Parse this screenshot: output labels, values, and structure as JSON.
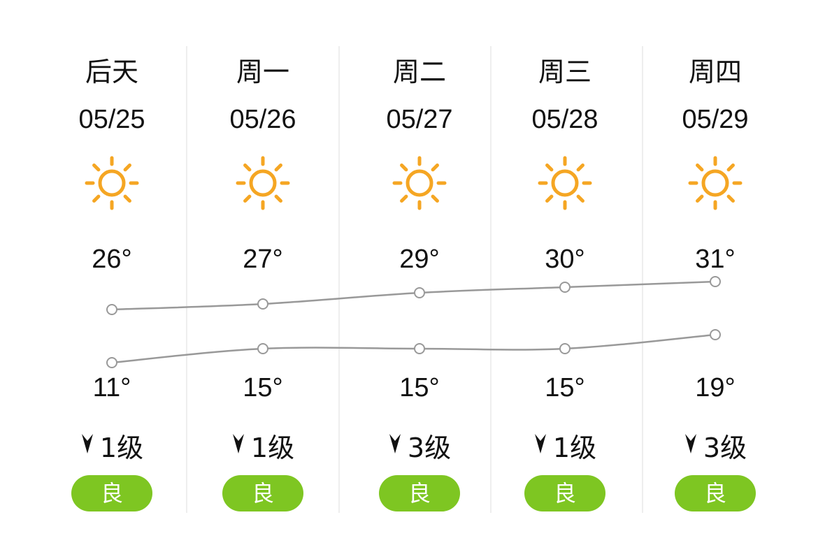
{
  "colors": {
    "sun": "#f5a623",
    "aqi_good": "#7ec622",
    "line": "#999999",
    "divider": "#eeeeee"
  },
  "days": [
    {
      "day": "后天",
      "date": "05/25",
      "icon": "sun-icon",
      "high": "26°",
      "low": "11°",
      "wind_icon": "wind-direction-icon",
      "wind": "1级",
      "aqi": "良"
    },
    {
      "day": "周一",
      "date": "05/26",
      "icon": "sun-icon",
      "high": "27°",
      "low": "15°",
      "wind_icon": "wind-direction-icon",
      "wind": "1级",
      "aqi": "良"
    },
    {
      "day": "周二",
      "date": "05/27",
      "icon": "sun-icon",
      "high": "29°",
      "low": "15°",
      "wind_icon": "wind-direction-icon",
      "wind": "3级",
      "aqi": "良"
    },
    {
      "day": "周三",
      "date": "05/28",
      "icon": "sun-icon",
      "high": "30°",
      "low": "15°",
      "wind_icon": "wind-direction-icon",
      "wind": "1级",
      "aqi": "良"
    },
    {
      "day": "周四",
      "date": "05/29",
      "icon": "sun-icon",
      "high": "31°",
      "low": "19°",
      "wind_icon": "wind-direction-icon",
      "wind": "3级",
      "aqi": "良"
    }
  ],
  "chart_data": {
    "type": "line",
    "categories": [
      "05/25",
      "05/26",
      "05/27",
      "05/28",
      "05/29"
    ],
    "series": [
      {
        "values": [
          26,
          27,
          29,
          30,
          31
        ]
      },
      {
        "values": [
          11,
          15,
          15,
          15,
          19
        ]
      }
    ]
  }
}
